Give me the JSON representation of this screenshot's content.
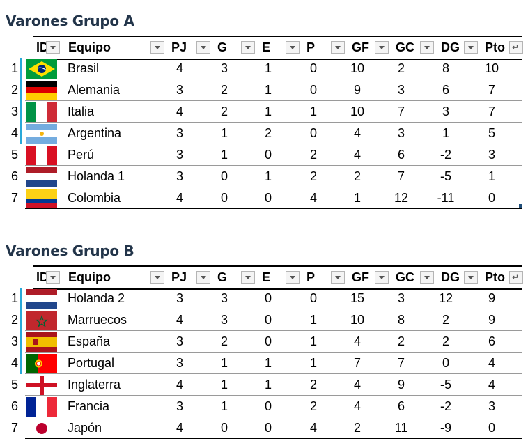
{
  "headers": {
    "id": "ID",
    "equipo": "Equipo",
    "pj": "PJ",
    "g": "G",
    "e": "E",
    "p": "P",
    "gf": "GF",
    "gc": "GC",
    "dg": "DG",
    "pto": "Pto"
  },
  "accent_color": "#29a9d9",
  "groups": [
    {
      "title": "Varones Grupo A",
      "rows": [
        {
          "id": "1",
          "team": "Brasil",
          "flag": "brazil",
          "pj": "4",
          "g": "3",
          "e": "1",
          "p": "0",
          "gf": "10",
          "gc": "2",
          "dg": "8",
          "pto": "10"
        },
        {
          "id": "2",
          "team": "Alemania",
          "flag": "germany",
          "pj": "3",
          "g": "2",
          "e": "1",
          "p": "0",
          "gf": "9",
          "gc": "3",
          "dg": "6",
          "pto": "7"
        },
        {
          "id": "3",
          "team": "Italia",
          "flag": "italy",
          "pj": "4",
          "g": "2",
          "e": "1",
          "p": "1",
          "gf": "10",
          "gc": "7",
          "dg": "3",
          "pto": "7"
        },
        {
          "id": "4",
          "team": "Argentina",
          "flag": "argentina",
          "pj": "3",
          "g": "1",
          "e": "2",
          "p": "0",
          "gf": "4",
          "gc": "3",
          "dg": "1",
          "pto": "5"
        },
        {
          "id": "5",
          "team": "Perú",
          "flag": "peru",
          "pj": "3",
          "g": "1",
          "e": "0",
          "p": "2",
          "gf": "4",
          "gc": "6",
          "dg": "-2",
          "pto": "3"
        },
        {
          "id": "6",
          "team": "Holanda 1",
          "flag": "netherlands",
          "pj": "3",
          "g": "0",
          "e": "1",
          "p": "2",
          "gf": "2",
          "gc": "7",
          "dg": "-5",
          "pto": "1"
        },
        {
          "id": "7",
          "team": "Colombia",
          "flag": "colombia",
          "pj": "4",
          "g": "0",
          "e": "0",
          "p": "4",
          "gf": "1",
          "gc": "12",
          "dg": "-11",
          "pto": "0"
        }
      ]
    },
    {
      "title": "Varones Grupo B",
      "rows": [
        {
          "id": "1",
          "team": "Holanda 2",
          "flag": "netherlands",
          "pj": "3",
          "g": "3",
          "e": "0",
          "p": "0",
          "gf": "15",
          "gc": "3",
          "dg": "12",
          "pto": "9"
        },
        {
          "id": "2",
          "team": "Marruecos",
          "flag": "morocco",
          "pj": "4",
          "g": "3",
          "e": "0",
          "p": "1",
          "gf": "10",
          "gc": "8",
          "dg": "2",
          "pto": "9"
        },
        {
          "id": "3",
          "team": "España",
          "flag": "spain",
          "pj": "3",
          "g": "2",
          "e": "0",
          "p": "1",
          "gf": "4",
          "gc": "2",
          "dg": "2",
          "pto": "6"
        },
        {
          "id": "4",
          "team": "Portugal",
          "flag": "portugal",
          "pj": "3",
          "g": "1",
          "e": "1",
          "p": "1",
          "gf": "7",
          "gc": "7",
          "dg": "0",
          "pto": "4"
        },
        {
          "id": "5",
          "team": "Inglaterra",
          "flag": "england",
          "pj": "4",
          "g": "1",
          "e": "1",
          "p": "2",
          "gf": "4",
          "gc": "9",
          "dg": "-5",
          "pto": "4"
        },
        {
          "id": "6",
          "team": "Francia",
          "flag": "france",
          "pj": "3",
          "g": "1",
          "e": "0",
          "p": "2",
          "gf": "4",
          "gc": "6",
          "dg": "-2",
          "pto": "3"
        },
        {
          "id": "7",
          "team": "Japón",
          "flag": "japan",
          "pj": "4",
          "g": "0",
          "e": "0",
          "p": "4",
          "gf": "2",
          "gc": "11",
          "dg": "-9",
          "pto": "0"
        }
      ]
    }
  ]
}
